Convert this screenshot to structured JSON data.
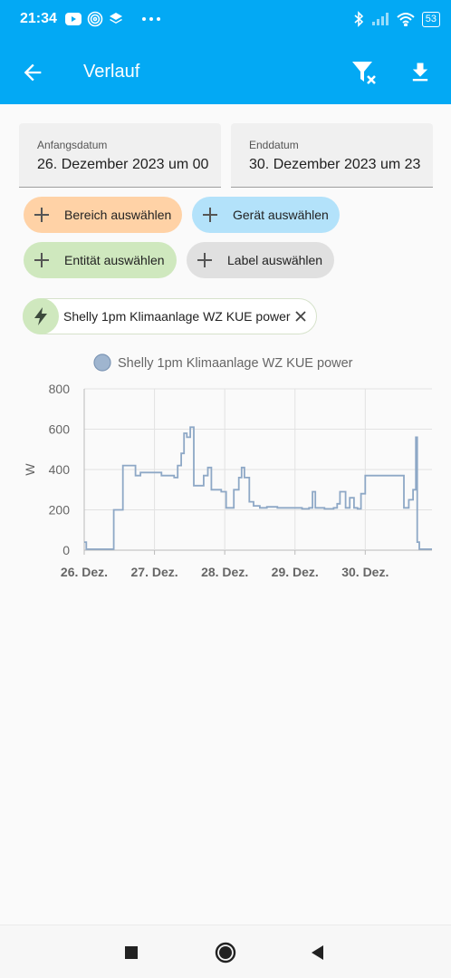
{
  "status": {
    "time": "21:34",
    "battery": "53"
  },
  "appbar": {
    "title": "Verlauf"
  },
  "dates": {
    "start_label": "Anfangsdatum",
    "start_value": "26. Dezember 2023 um 00",
    "end_label": "Enddatum",
    "end_value": "30. Dezember 2023 um 23"
  },
  "targets": {
    "area": "Bereich auswählen",
    "device": "Gerät auswählen",
    "entity": "Entität auswählen",
    "label": "Label auswählen"
  },
  "selected_entity": {
    "name": "Shelly 1pm Klimaanlage WZ KUE power"
  },
  "colors": {
    "primary": "#03a9f4",
    "area_chip": "#ffd2a6",
    "device_chip": "#b3e2fa",
    "entity_chip": "#cfe8be",
    "label_chip": "#e0e0e0",
    "series": "#8ea8c6"
  },
  "chart_data": {
    "type": "line",
    "title": "",
    "legend": [
      "Shelly 1pm Klimaanlage WZ KUE power"
    ],
    "legend_position": "top",
    "xlabel": "",
    "ylabel": "W",
    "ylim": [
      0,
      800
    ],
    "yticks": [
      0,
      200,
      400,
      600,
      800
    ],
    "xlim": [
      0,
      4.95
    ],
    "xticks": [
      0,
      1,
      2,
      3,
      4
    ],
    "xtick_labels": [
      "26. Dez.",
      "27. Dez.",
      "28. Dez.",
      "29. Dez.",
      "30. Dez."
    ],
    "grid": true,
    "series": [
      {
        "name": "Shelly 1pm Klimaanlage WZ KUE power",
        "step": true,
        "x": [
          0,
          0.03,
          0.37,
          0.42,
          0.55,
          0.73,
          0.8,
          1.1,
          1.28,
          1.33,
          1.38,
          1.42,
          1.46,
          1.51,
          1.56,
          1.62,
          1.7,
          1.76,
          1.81,
          1.86,
          1.95,
          2.02,
          2.13,
          2.2,
          2.24,
          2.28,
          2.35,
          2.41,
          2.5,
          2.6,
          2.75,
          2.88,
          3.1,
          3.2,
          3.25,
          3.29,
          3.42,
          3.55,
          3.6,
          3.64,
          3.72,
          3.78,
          3.84,
          3.89,
          3.94,
          4.0,
          4.03,
          4.5,
          4.55,
          4.62,
          4.68,
          4.72,
          4.74,
          4.77,
          4.85,
          4.95
        ],
        "y": [
          40,
          5,
          5,
          200,
          420,
          370,
          385,
          370,
          360,
          420,
          480,
          580,
          560,
          610,
          320,
          320,
          370,
          410,
          300,
          300,
          290,
          210,
          300,
          360,
          410,
          360,
          240,
          220,
          210,
          215,
          210,
          210,
          205,
          210,
          290,
          210,
          205,
          210,
          230,
          290,
          210,
          260,
          210,
          205,
          280,
          370,
          370,
          370,
          210,
          250,
          300,
          560,
          40,
          5,
          5,
          5
        ]
      }
    ]
  }
}
